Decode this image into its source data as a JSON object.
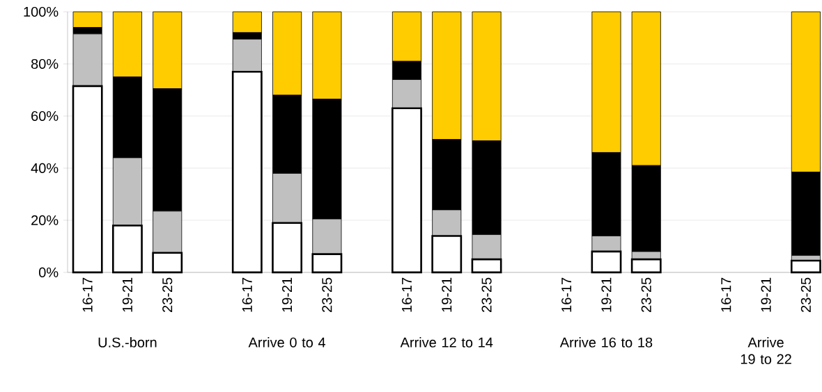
{
  "chart_data": {
    "type": "bar",
    "stacked": true,
    "categories": [
      "16-17",
      "19-21",
      "23-25",
      null,
      "16-17",
      "19-21",
      "23-25",
      null,
      "16-17",
      "19-21",
      "23-25",
      null,
      "16-17",
      "19-21",
      "23-25",
      null,
      "16-17",
      "19-21",
      "23-25"
    ],
    "series": [
      {
        "color": "#ffffff",
        "values": [
          71.5,
          18,
          7.5,
          null,
          77,
          19,
          7,
          null,
          63,
          14,
          5,
          null,
          null,
          8,
          5,
          null,
          null,
          null,
          4.5
        ]
      },
      {
        "color": "#c0c0c0",
        "values": [
          20,
          26,
          16,
          null,
          12.5,
          19,
          13.5,
          null,
          11,
          10,
          9.5,
          null,
          null,
          6,
          3,
          null,
          null,
          null,
          2
        ]
      },
      {
        "color": "#000000",
        "values": [
          2.5,
          31,
          47,
          null,
          2.5,
          30,
          46,
          null,
          7,
          27,
          36,
          null,
          null,
          32,
          33,
          null,
          null,
          null,
          32
        ]
      },
      {
        "color": "#ffcc00",
        "values": [
          6,
          25,
          29.5,
          null,
          8,
          32,
          33.5,
          null,
          19,
          49,
          49.5,
          null,
          null,
          54,
          59,
          null,
          null,
          null,
          61.5
        ]
      }
    ],
    "ylim": [
      0,
      100
    ],
    "yticks": [
      {
        "value": 0,
        "label": "0%"
      },
      {
        "value": 20,
        "label": "20%"
      },
      {
        "value": 40,
        "label": "40%"
      },
      {
        "value": 60,
        "label": "60%"
      },
      {
        "value": 80,
        "label": "80%"
      },
      {
        "value": 100,
        "label": "100%"
      }
    ],
    "grid": "y",
    "annotations": [
      "U.S.-born",
      "Arrive 0 to 4",
      "Arrive 12 to 14",
      "Arrive 16 to 18",
      "Arrive 19 to 22"
    ]
  }
}
